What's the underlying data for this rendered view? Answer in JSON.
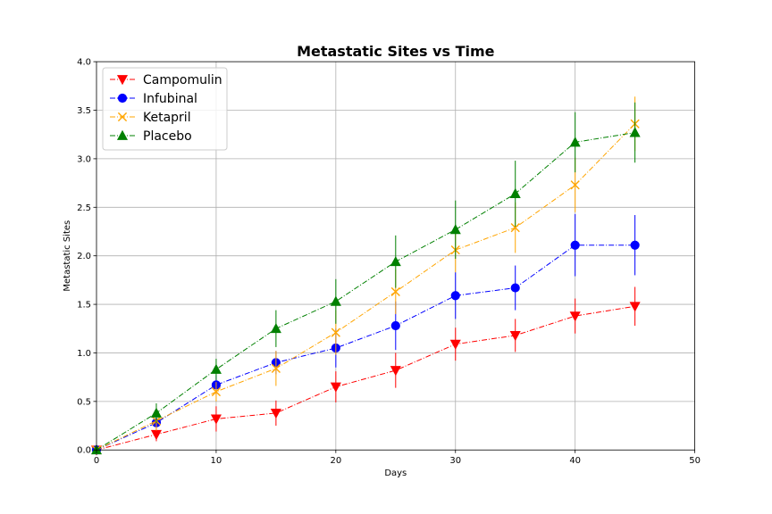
{
  "chart_data": {
    "type": "line",
    "title": "Metastatic Sites vs Time",
    "xlabel": "Days",
    "ylabel": "Metastatic Sites",
    "xlim": [
      0,
      50
    ],
    "ylim": [
      0,
      4.0
    ],
    "xticks": [
      0,
      10,
      20,
      30,
      40,
      50
    ],
    "xtick_labels": [
      "0",
      "10",
      "20",
      "30",
      "40",
      "50"
    ],
    "yticks": [
      0,
      0.5,
      1.0,
      1.5,
      2.0,
      2.5,
      3.0,
      3.5,
      4.0
    ],
    "ytick_labels": [
      "0.0",
      "0.5",
      "1.0",
      "1.5",
      "2.0",
      "2.5",
      "3.0",
      "3.5",
      "4.0"
    ],
    "grid": true,
    "legend_position": "top-left",
    "x": [
      0,
      5,
      10,
      15,
      20,
      25,
      30,
      35,
      40,
      45
    ],
    "series": [
      {
        "name": "Campomulin",
        "color": "#ff0000",
        "marker": "triangle-down",
        "values": [
          0.0,
          0.16,
          0.32,
          0.38,
          0.65,
          0.82,
          1.09,
          1.18,
          1.38,
          1.48
        ],
        "errors": [
          0.0,
          0.07,
          0.13,
          0.13,
          0.16,
          0.18,
          0.17,
          0.17,
          0.18,
          0.2
        ]
      },
      {
        "name": "Infubinal",
        "color": "#0000ff",
        "marker": "circle",
        "values": [
          0.0,
          0.28,
          0.67,
          0.9,
          1.05,
          1.28,
          1.59,
          1.67,
          2.11,
          2.11
        ],
        "errors": [
          0.0,
          0.07,
          0.1,
          0.12,
          0.2,
          0.25,
          0.24,
          0.23,
          0.32,
          0.31
        ]
      },
      {
        "name": "Ketapril",
        "color": "#ffa500",
        "marker": "x",
        "values": [
          0.0,
          0.3,
          0.6,
          0.84,
          1.21,
          1.63,
          2.06,
          2.29,
          2.73,
          3.36
        ],
        "errors": [
          0.0,
          0.1,
          0.1,
          0.18,
          0.23,
          0.23,
          0.23,
          0.26,
          0.28,
          0.28
        ]
      },
      {
        "name": "Placebo",
        "color": "#008000",
        "marker": "triangle-up",
        "values": [
          0.0,
          0.38,
          0.83,
          1.25,
          1.53,
          1.94,
          2.27,
          2.64,
          3.17,
          3.27
        ],
        "errors": [
          0.0,
          0.1,
          0.11,
          0.19,
          0.23,
          0.27,
          0.3,
          0.34,
          0.31,
          0.31
        ]
      }
    ]
  }
}
